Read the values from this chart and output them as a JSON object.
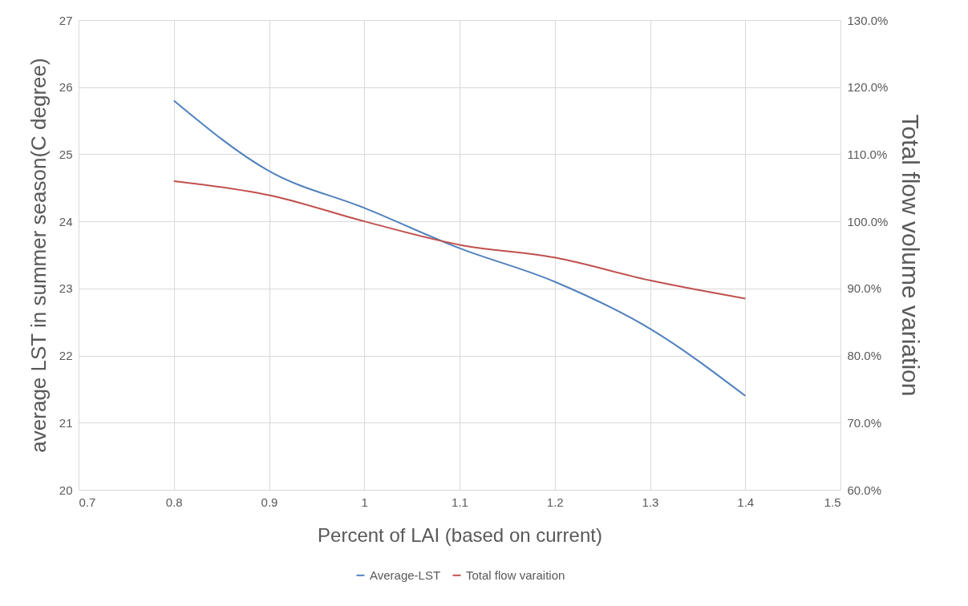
{
  "chart_data": {
    "type": "line",
    "xlabel": "Percent of LAI (based on current)",
    "ylabel": "average LST in summer season(C degree)",
    "y2label": "Total flow volume variation",
    "x": [
      0.8,
      0.9,
      1,
      1.1,
      1.2,
      1.3,
      1.4
    ],
    "series": [
      {
        "name": "Average-LST",
        "color": "#4f81bd",
        "values": [
          25.8,
          24.75,
          24.2,
          23.6,
          23.1,
          22.4,
          21.4
        ]
      },
      {
        "name": "Total flow varaition",
        "color": "#c0504d",
        "axis": "y2",
        "values": [
          106.0,
          103.9,
          100.0,
          96.5,
          94.6,
          91.2,
          88.5
        ]
      }
    ],
    "xlim": [
      0.7,
      1.5
    ],
    "xticks": [
      0.7,
      0.8,
      0.9,
      1,
      1.1,
      1.2,
      1.3,
      1.4,
      1.5
    ],
    "ylim": [
      20,
      27
    ],
    "yticks": [
      20,
      21,
      22,
      23,
      24,
      25,
      26,
      27
    ],
    "y2lim": [
      60,
      130
    ],
    "y2ticks": [
      {
        "value": 60,
        "label": "60.0%"
      },
      {
        "value": 70,
        "label": "70.0%"
      },
      {
        "value": 80,
        "label": "80.0%"
      },
      {
        "value": 90,
        "label": "90.0%"
      },
      {
        "value": 100,
        "label": "100.0%"
      },
      {
        "value": 110,
        "label": "110.0%"
      },
      {
        "value": 120,
        "label": "120.0%"
      },
      {
        "value": 130,
        "label": "130.0%"
      }
    ],
    "grid": true,
    "legend": "bottom",
    "marker": "none",
    "line_style": "solid"
  }
}
